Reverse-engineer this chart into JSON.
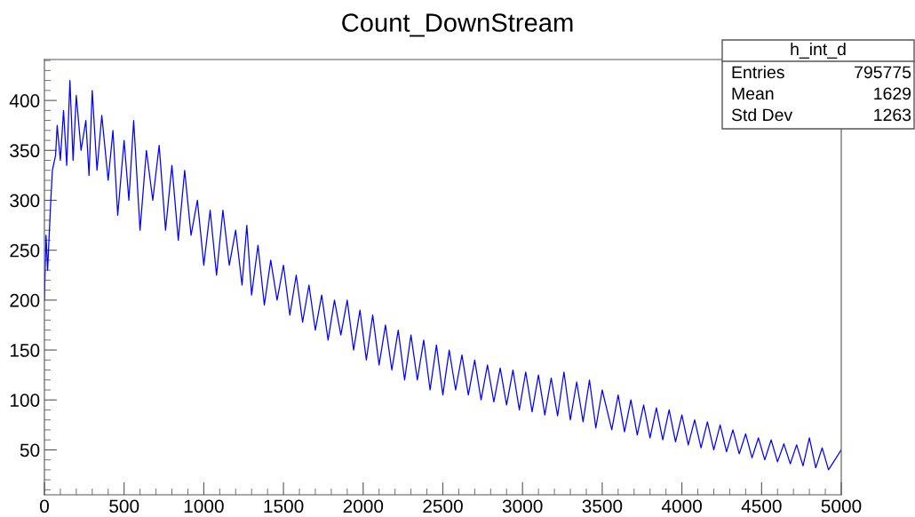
{
  "chart_data": {
    "type": "line",
    "title": "Count_DownStream",
    "annotations": [
      "h_int_d",
      "Entries",
      "795775",
      "Mean",
      "1629",
      "Std Dev",
      "1263"
    ],
    "xlim": [
      0,
      5000
    ],
    "xticks": [
      0,
      500,
      1000,
      1500,
      2000,
      2500,
      3000,
      3500,
      4000,
      4500,
      5000
    ],
    "ylim": [
      5,
      441
    ],
    "yticks": [
      50,
      100,
      150,
      200,
      250,
      300,
      350,
      400
    ],
    "grid": false,
    "legend": false,
    "series": [
      {
        "color": "#0000ff",
        "x": [
          0,
          10,
          20,
          40,
          50,
          70,
          80,
          100,
          120,
          140,
          160,
          180,
          200,
          230,
          260,
          280,
          300,
          330,
          360,
          400,
          430,
          460,
          500,
          530,
          560,
          600,
          640,
          680,
          720,
          760,
          800,
          840,
          880,
          920,
          960,
          1000,
          1040,
          1080,
          1120,
          1160,
          1200,
          1240,
          1270,
          1300,
          1340,
          1380,
          1420,
          1460,
          1500,
          1540,
          1580,
          1620,
          1660,
          1700,
          1740,
          1780,
          1820,
          1860,
          1900,
          1940,
          1980,
          2020,
          2060,
          2100,
          2140,
          2180,
          2220,
          2260,
          2300,
          2340,
          2380,
          2420,
          2460,
          2500,
          2540,
          2580,
          2620,
          2660,
          2700,
          2740,
          2780,
          2820,
          2860,
          2900,
          2940,
          2980,
          3020,
          3060,
          3100,
          3140,
          3180,
          3220,
          3260,
          3300,
          3340,
          3380,
          3420,
          3460,
          3500,
          3560,
          3600,
          3640,
          3680,
          3720,
          3760,
          3800,
          3840,
          3880,
          3920,
          3960,
          4000,
          4040,
          4080,
          4120,
          4160,
          4200,
          4240,
          4280,
          4320,
          4360,
          4400,
          4440,
          4480,
          4520,
          4560,
          4600,
          4640,
          4680,
          4720,
          4760,
          4800,
          4840,
          4880,
          4920,
          5000
        ],
        "values": [
          200,
          265,
          230,
          300,
          330,
          345,
          375,
          340,
          390,
          335,
          420,
          340,
          405,
          350,
          380,
          325,
          410,
          330,
          385,
          320,
          370,
          285,
          360,
          300,
          380,
          270,
          350,
          300,
          355,
          270,
          335,
          260,
          330,
          265,
          300,
          235,
          290,
          225,
          290,
          235,
          270,
          215,
          275,
          205,
          255,
          195,
          240,
          200,
          235,
          185,
          225,
          178,
          215,
          170,
          205,
          160,
          200,
          165,
          200,
          150,
          190,
          140,
          185,
          135,
          175,
          130,
          170,
          120,
          165,
          120,
          160,
          110,
          155,
          105,
          150,
          110,
          145,
          105,
          140,
          100,
          135,
          98,
          132,
          95,
          130,
          90,
          128,
          88,
          125,
          85,
          122,
          84,
          128,
          80,
          118,
          78,
          120,
          72,
          110,
          70,
          105,
          68,
          100,
          65,
          95,
          62,
          92,
          60,
          90,
          58,
          85,
          55,
          80,
          52,
          78,
          50,
          75,
          48,
          70,
          46,
          66,
          42,
          62,
          40,
          60,
          38,
          56,
          36,
          55,
          34,
          62,
          32,
          52,
          30,
          50
        ]
      }
    ]
  }
}
